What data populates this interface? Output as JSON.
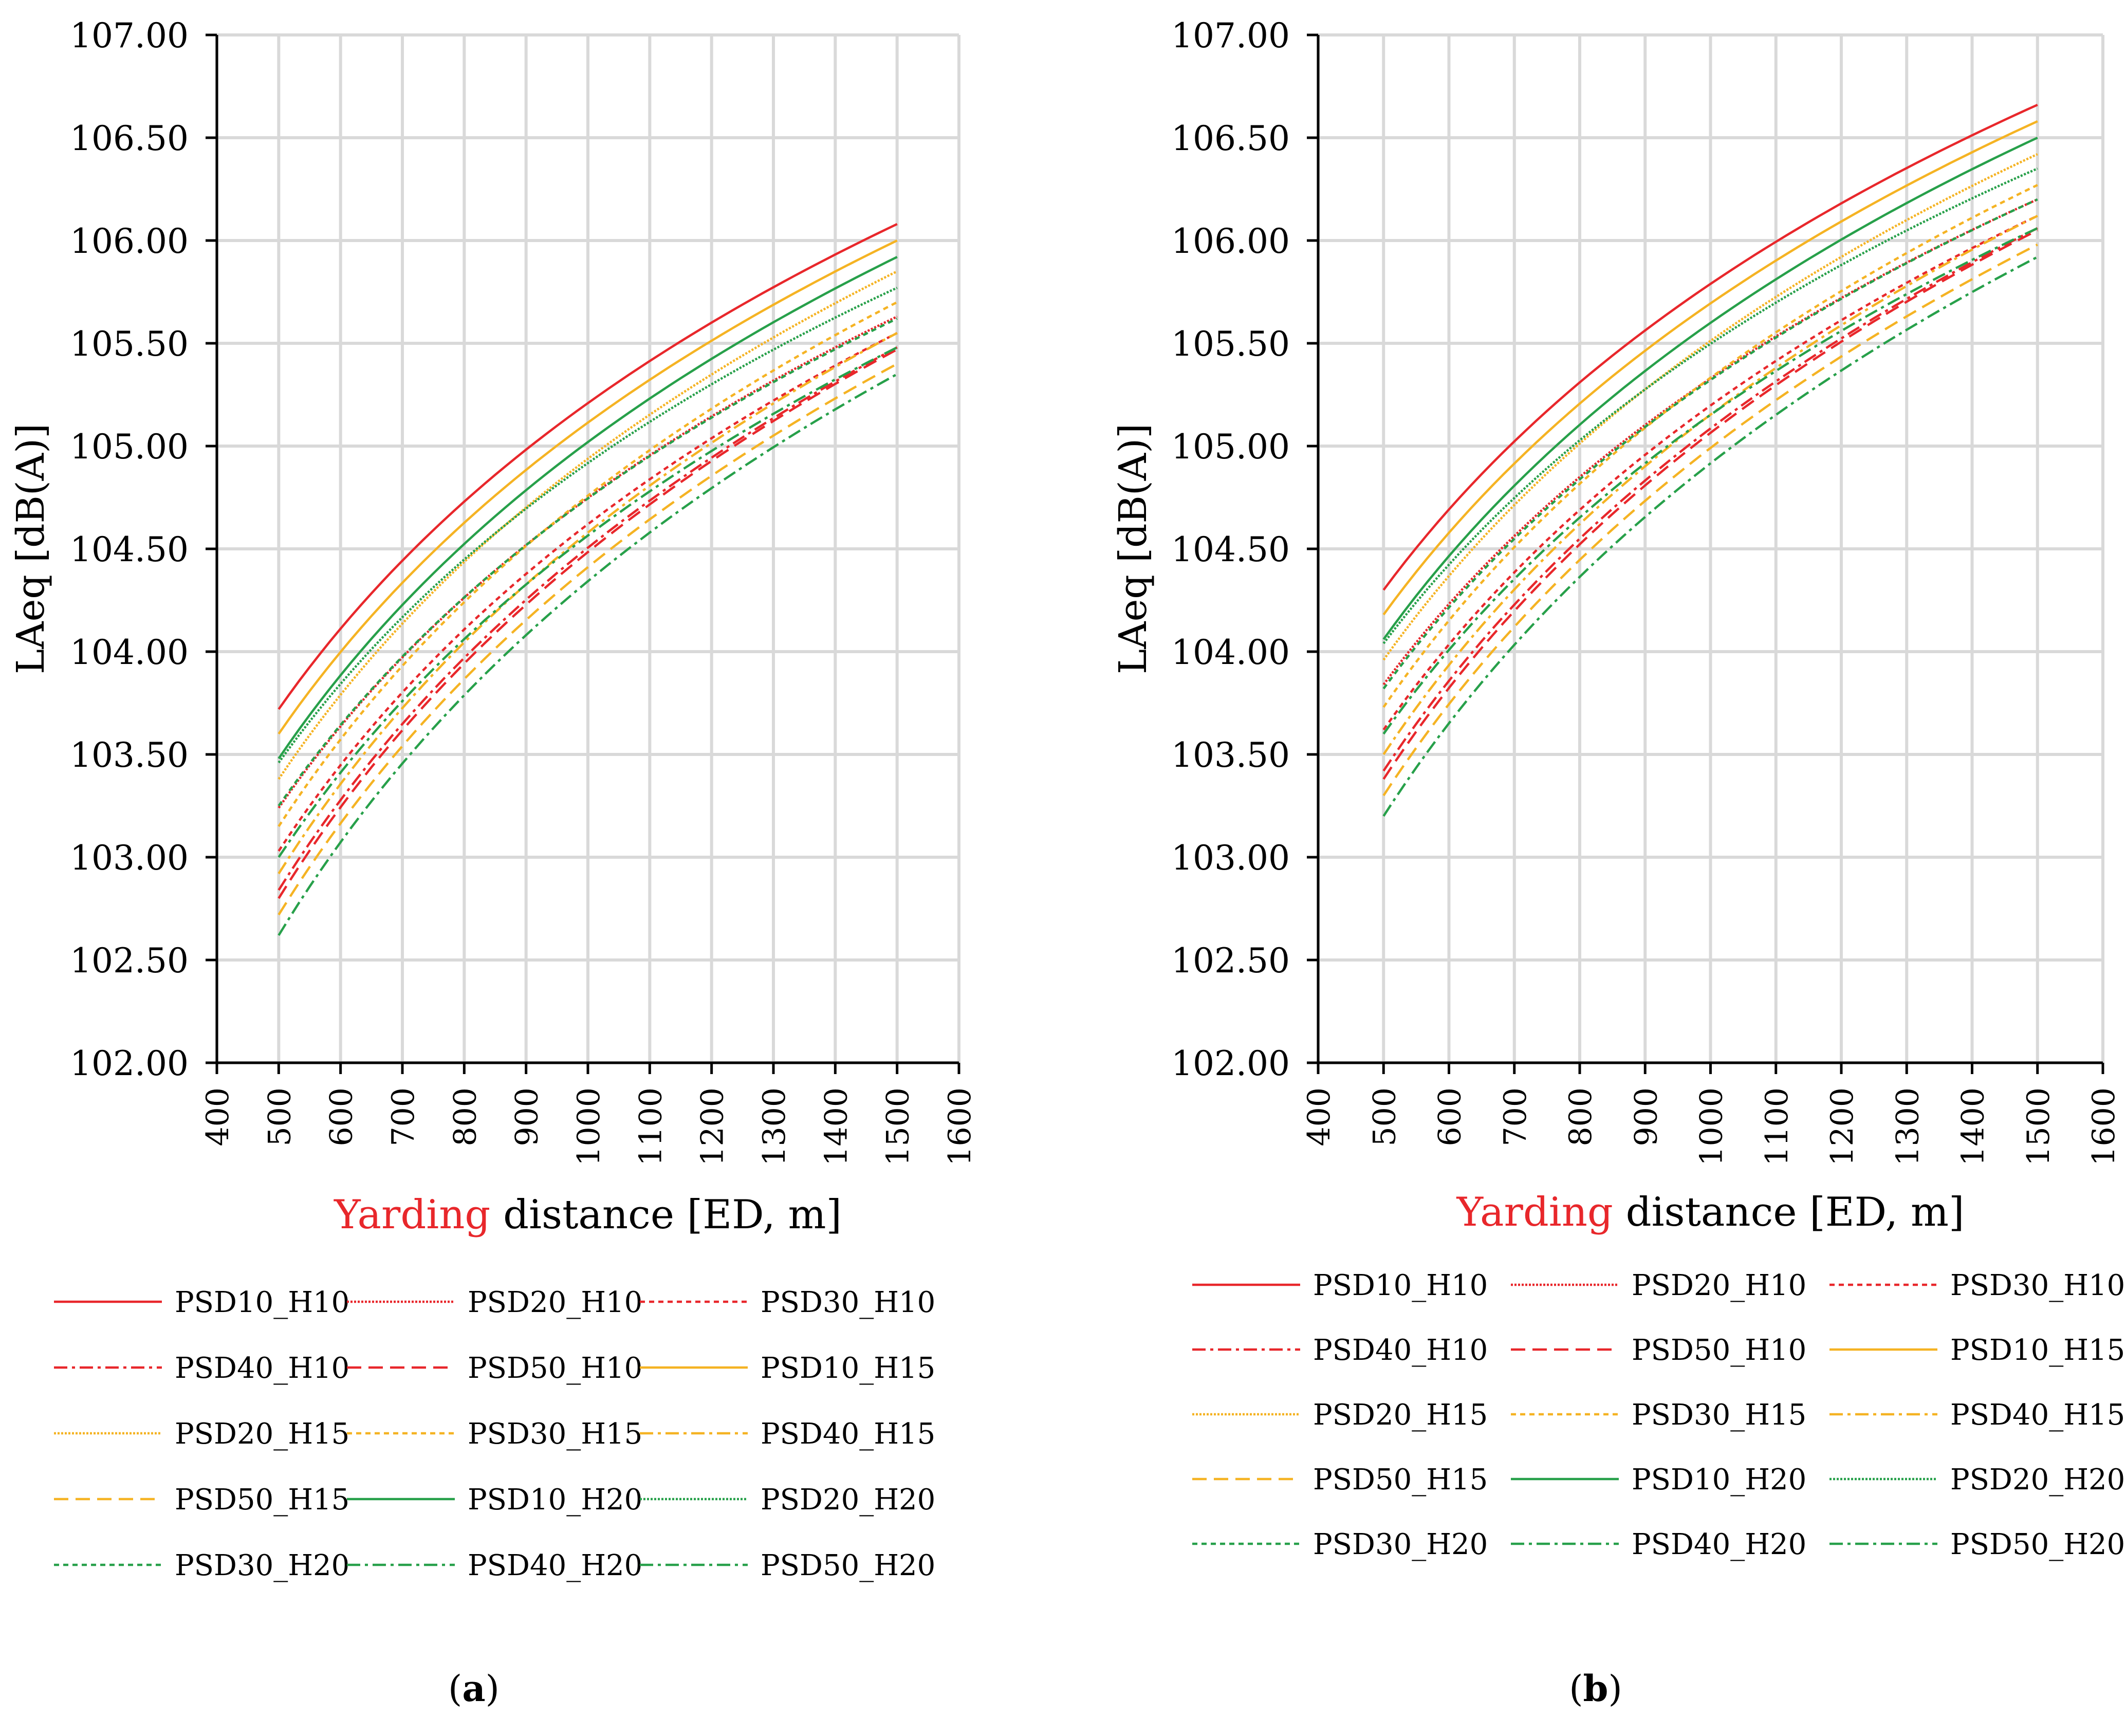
{
  "chart_data": [
    {
      "type": "line",
      "panel_label": "(a)",
      "panel_letter": "a",
      "xlabel_highlight": "Yarding",
      "xlabel_rest": " distance [ED, m]",
      "ylabel": "LAeq [dB(A)]",
      "xlim": [
        400,
        1600
      ],
      "ylim": [
        102.0,
        107.0
      ],
      "xticks": [
        "400",
        "500",
        "600",
        "700",
        "800",
        "900",
        "1000",
        "1100",
        "1200",
        "1300",
        "1400",
        "1500",
        "1600"
      ],
      "yticks": [
        "102.00",
        "102.50",
        "103.00",
        "103.50",
        "104.00",
        "104.50",
        "105.00",
        "105.50",
        "106.00",
        "106.50",
        "107.00"
      ],
      "grid": true,
      "x_range": [
        500,
        1500
      ],
      "series": [
        {
          "name": "PSD10_H10",
          "start": 103.72,
          "end": 106.08
        },
        {
          "name": "PSD20_H10",
          "start": 103.24,
          "end": 105.63
        },
        {
          "name": "PSD30_H10",
          "start": 103.03,
          "end": 105.55
        },
        {
          "name": "PSD40_H10",
          "start": 102.84,
          "end": 105.48
        },
        {
          "name": "PSD50_H10",
          "start": 102.8,
          "end": 105.47
        },
        {
          "name": "PSD10_H15",
          "start": 103.6,
          "end": 106.0
        },
        {
          "name": "PSD20_H15",
          "start": 103.38,
          "end": 105.85
        },
        {
          "name": "PSD30_H15",
          "start": 103.15,
          "end": 105.7
        },
        {
          "name": "PSD40_H15",
          "start": 102.92,
          "end": 105.55
        },
        {
          "name": "PSD50_H15",
          "start": 102.72,
          "end": 105.4
        },
        {
          "name": "PSD10_H20",
          "start": 103.48,
          "end": 105.92
        },
        {
          "name": "PSD20_H20",
          "start": 103.46,
          "end": 105.77
        },
        {
          "name": "PSD30_H20",
          "start": 103.25,
          "end": 105.62
        },
        {
          "name": "PSD40_H20",
          "start": 103.0,
          "end": 105.48
        },
        {
          "name": "PSD50_H20",
          "start": 102.62,
          "end": 105.35
        }
      ]
    },
    {
      "type": "line",
      "panel_label": "(b)",
      "panel_letter": "b",
      "xlabel_highlight": "Yarding",
      "xlabel_rest": " distance [ED, m]",
      "ylabel": "LAeq [dB(A)]",
      "xlim": [
        400,
        1600
      ],
      "ylim": [
        102.0,
        107.0
      ],
      "xticks": [
        "400",
        "500",
        "600",
        "700",
        "800",
        "900",
        "1000",
        "1100",
        "1200",
        "1300",
        "1400",
        "1500",
        "1600"
      ],
      "yticks": [
        "102.00",
        "102.50",
        "103.00",
        "103.50",
        "104.00",
        "104.50",
        "105.00",
        "105.50",
        "106.00",
        "106.50",
        "107.00"
      ],
      "grid": true,
      "x_range": [
        500,
        1500
      ],
      "series": [
        {
          "name": "PSD10_H10",
          "start": 104.3,
          "end": 106.66
        },
        {
          "name": "PSD20_H10",
          "start": 103.84,
          "end": 106.2
        },
        {
          "name": "PSD30_H10",
          "start": 103.62,
          "end": 106.12
        },
        {
          "name": "PSD40_H10",
          "start": 103.42,
          "end": 106.06
        },
        {
          "name": "PSD50_H10",
          "start": 103.38,
          "end": 106.05
        },
        {
          "name": "PSD10_H15",
          "start": 104.18,
          "end": 106.58
        },
        {
          "name": "PSD20_H15",
          "start": 103.96,
          "end": 106.42
        },
        {
          "name": "PSD30_H15",
          "start": 103.73,
          "end": 106.27
        },
        {
          "name": "PSD40_H15",
          "start": 103.5,
          "end": 106.12
        },
        {
          "name": "PSD50_H15",
          "start": 103.3,
          "end": 105.98
        },
        {
          "name": "PSD10_H20",
          "start": 104.06,
          "end": 106.5
        },
        {
          "name": "PSD20_H20",
          "start": 104.04,
          "end": 106.35
        },
        {
          "name": "PSD30_H20",
          "start": 103.82,
          "end": 106.2
        },
        {
          "name": "PSD40_H20",
          "start": 103.6,
          "end": 106.06
        },
        {
          "name": "PSD50_H20",
          "start": 103.2,
          "end": 105.92
        }
      ]
    }
  ],
  "legend": {
    "entries": [
      {
        "name": "PSD10_H10",
        "color": "#e8272b",
        "dash": "solid"
      },
      {
        "name": "PSD20_H10",
        "color": "#e8272b",
        "dash": "dot-dense"
      },
      {
        "name": "PSD30_H10",
        "color": "#e8272b",
        "dash": "dot"
      },
      {
        "name": "PSD40_H10",
        "color": "#e8272b",
        "dash": "dashdot"
      },
      {
        "name": "PSD50_H10",
        "color": "#e8272b",
        "dash": "dash"
      },
      {
        "name": "PSD10_H15",
        "color": "#f5b323",
        "dash": "solid"
      },
      {
        "name": "PSD20_H15",
        "color": "#f5b323",
        "dash": "dot-dense"
      },
      {
        "name": "PSD30_H15",
        "color": "#f5b323",
        "dash": "dot"
      },
      {
        "name": "PSD40_H15",
        "color": "#f5b323",
        "dash": "dashdot"
      },
      {
        "name": "PSD50_H15",
        "color": "#f5b323",
        "dash": "dash"
      },
      {
        "name": "PSD10_H20",
        "color": "#27a04a",
        "dash": "solid"
      },
      {
        "name": "PSD20_H20",
        "color": "#27a04a",
        "dash": "dot-dense"
      },
      {
        "name": "PSD30_H20",
        "color": "#27a04a",
        "dash": "dot"
      },
      {
        "name": "PSD40_H20",
        "color": "#27a04a",
        "dash": "dashdot"
      },
      {
        "name": "PSD50_H20",
        "color": "#27a04a",
        "dash": "dashdot"
      }
    ]
  },
  "colors": {
    "red": "#e8272b",
    "orange": "#f5b323",
    "green": "#27a04a",
    "highlight_text": "#e8272b",
    "grid": "#d9d9d9",
    "axis": "#000000"
  }
}
